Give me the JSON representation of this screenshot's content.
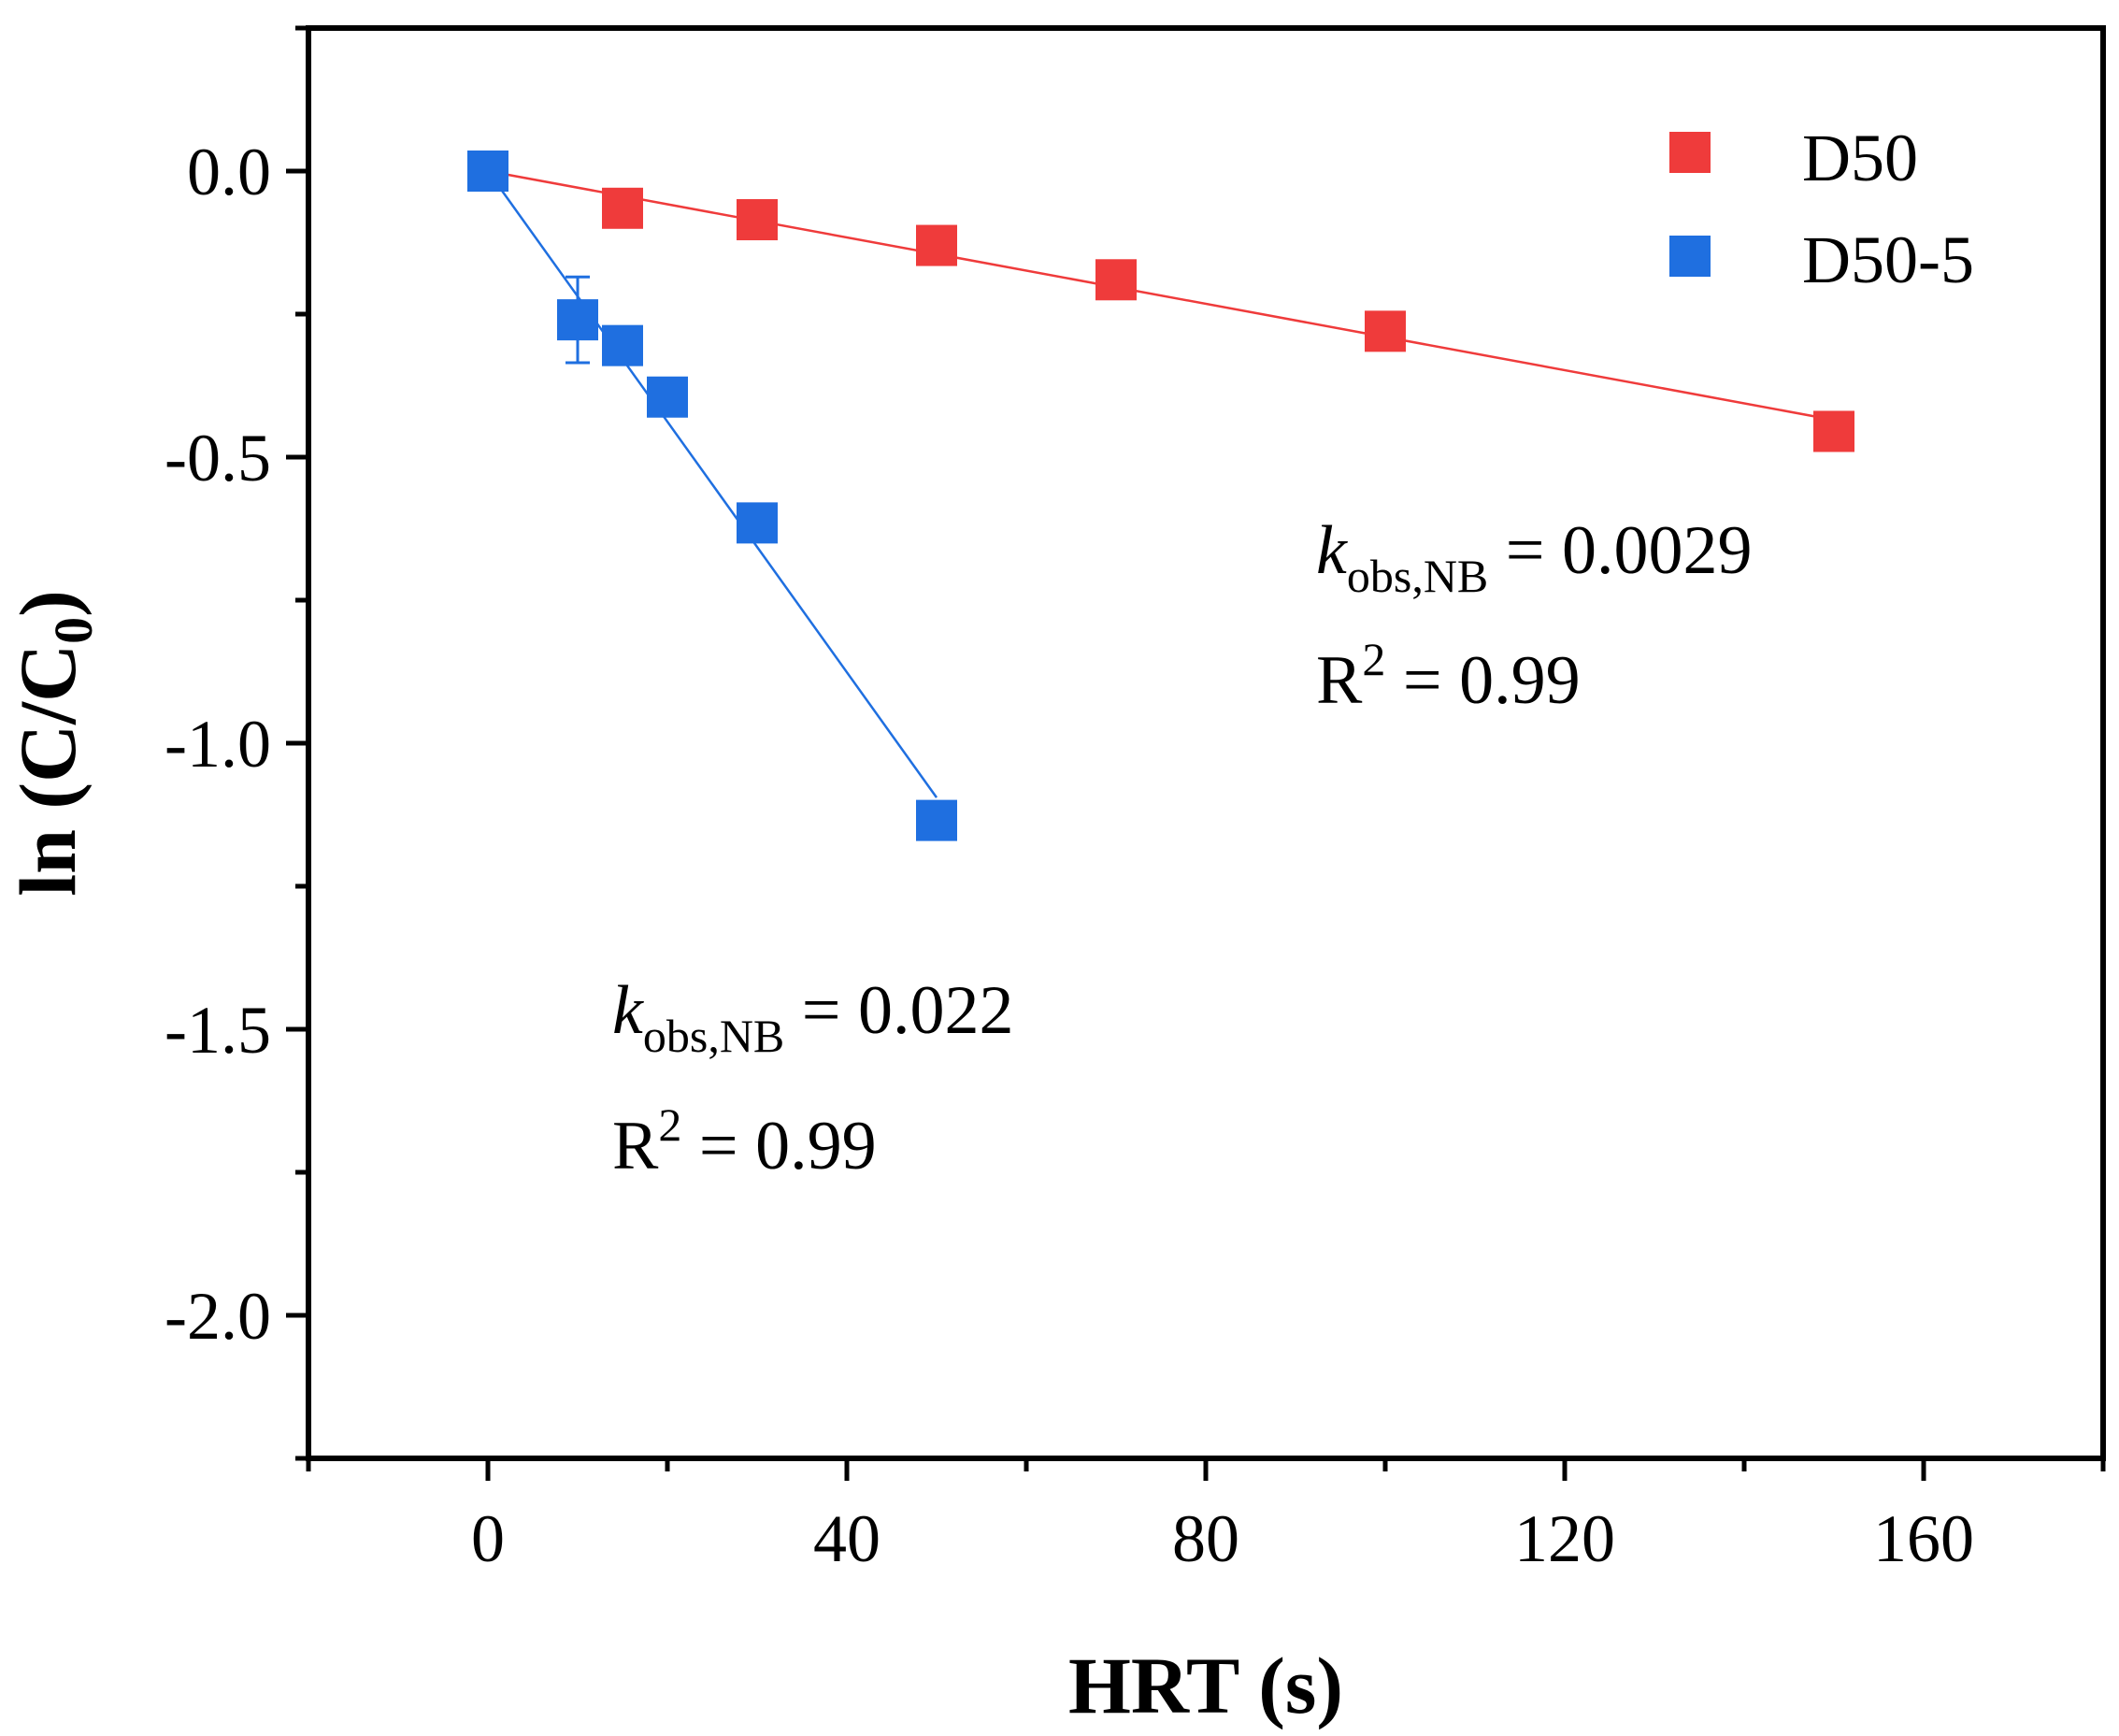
{
  "chart_data": {
    "type": "scatter",
    "title": "",
    "xlabel": "HRT (s)",
    "ylabel": "ln (C/C",
    "ylabel_sub": "0",
    "ylabel_close": ")",
    "xlim": [
      -20,
      180
    ],
    "ylim": [
      -2.25,
      0.25
    ],
    "xticks": [
      0,
      40,
      80,
      120,
      160
    ],
    "xtick_labels": [
      "0",
      "40",
      "80",
      "120",
      "160"
    ],
    "xminor": [
      -20,
      20,
      60,
      100,
      140,
      180
    ],
    "yticks": [
      0.0,
      -0.5,
      -1.0,
      -1.5,
      -2.0
    ],
    "ytick_labels": [
      "0.0",
      "-0.5",
      "-1.0",
      "-1.5",
      "-2.0"
    ],
    "yminor": [
      0.25,
      -0.25,
      -0.75,
      -1.25,
      -1.75,
      -2.25
    ],
    "legend_position": "top-right",
    "series": [
      {
        "name": "D50",
        "color": "#ef3b3b",
        "x": [
          0,
          15,
          30,
          50,
          70,
          100,
          150
        ],
        "y": [
          0.0,
          -0.065,
          -0.085,
          -0.13,
          -0.19,
          -0.28,
          -0.455
        ],
        "fit": {
          "x": [
            0,
            150
          ],
          "y": [
            0.0,
            -0.435
          ]
        },
        "errors": []
      },
      {
        "name": "D50-5",
        "color": "#1f6fe0",
        "x": [
          0,
          10,
          15,
          20,
          30,
          50
        ],
        "y": [
          0.0,
          -0.26,
          -0.305,
          -0.395,
          -0.615,
          -1.135
        ],
        "fit": {
          "x": [
            0,
            50
          ],
          "y": [
            0.0,
            -1.095
          ]
        },
        "errors": [
          {
            "x": 10,
            "y": -0.26,
            "err": 0.075
          }
        ]
      }
    ],
    "annotations": [
      {
        "id": "d50",
        "k_symbol": "k",
        "sub": "obs,NB",
        "k_value": " = 0.0029",
        "r_symbol": "R",
        "sup": "2",
        "r_value": " = 0.99"
      },
      {
        "id": "d505",
        "k_symbol": "k",
        "sub": "obs,NB",
        "k_value": " = 0.022",
        "r_symbol": "R",
        "sup": "2",
        "r_value": " = 0.99"
      }
    ]
  }
}
